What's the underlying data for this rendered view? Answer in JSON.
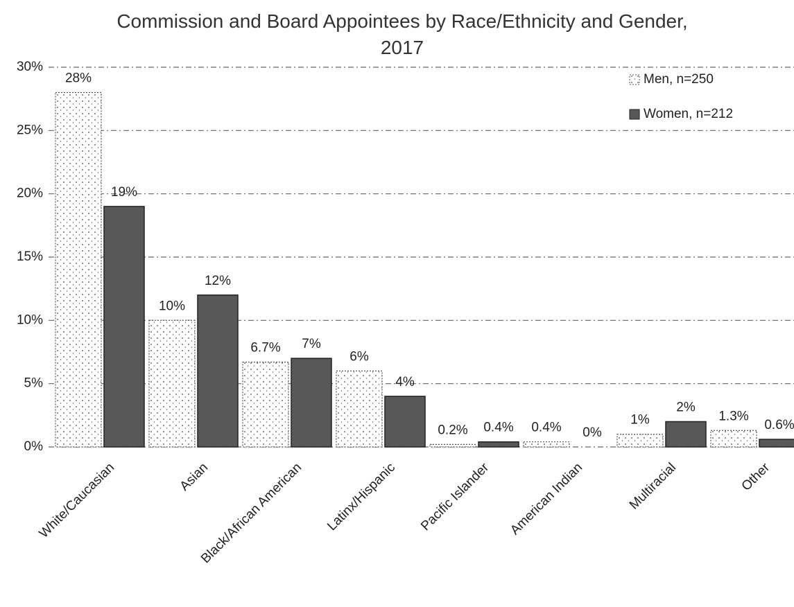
{
  "chart_data": {
    "type": "bar",
    "title": "Commission and Board Appointees by Race/Ethnicity and Gender, 2017",
    "categories": [
      "White/Caucasian",
      "Asian",
      "Black/African American",
      "Latinx/Hispanic",
      "Pacific Islander",
      "American Indian",
      "Multiracial",
      "Other"
    ],
    "series": [
      {
        "name": "Men, n=250",
        "color": "#ffffff",
        "values": [
          28,
          10,
          6.7,
          6,
          0.2,
          0.4,
          1,
          1.3
        ],
        "value_labels": [
          "28%",
          "10%",
          "6.7%",
          "6%",
          "0.2%",
          "0.4%",
          "1%",
          "1.3%"
        ]
      },
      {
        "name": "Women, n=212",
        "color": "#585858",
        "values": [
          19,
          12,
          7,
          4,
          0.4,
          0,
          2,
          0.6
        ],
        "value_labels": [
          "19%",
          "12%",
          "7%",
          "4%",
          "0.4%",
          "0%",
          "2%",
          "0.6%"
        ]
      }
    ],
    "ylim": [
      0,
      30
    ],
    "yticks": [
      {
        "value": 0,
        "label": "0%"
      },
      {
        "value": 5,
        "label": "5%"
      },
      {
        "value": 10,
        "label": "10%"
      },
      {
        "value": 15,
        "label": "15%"
      },
      {
        "value": 20,
        "label": "20%"
      },
      {
        "value": 25,
        "label": "25%"
      },
      {
        "value": 30,
        "label": "30%"
      }
    ],
    "grid": true,
    "legend": "top-right"
  }
}
